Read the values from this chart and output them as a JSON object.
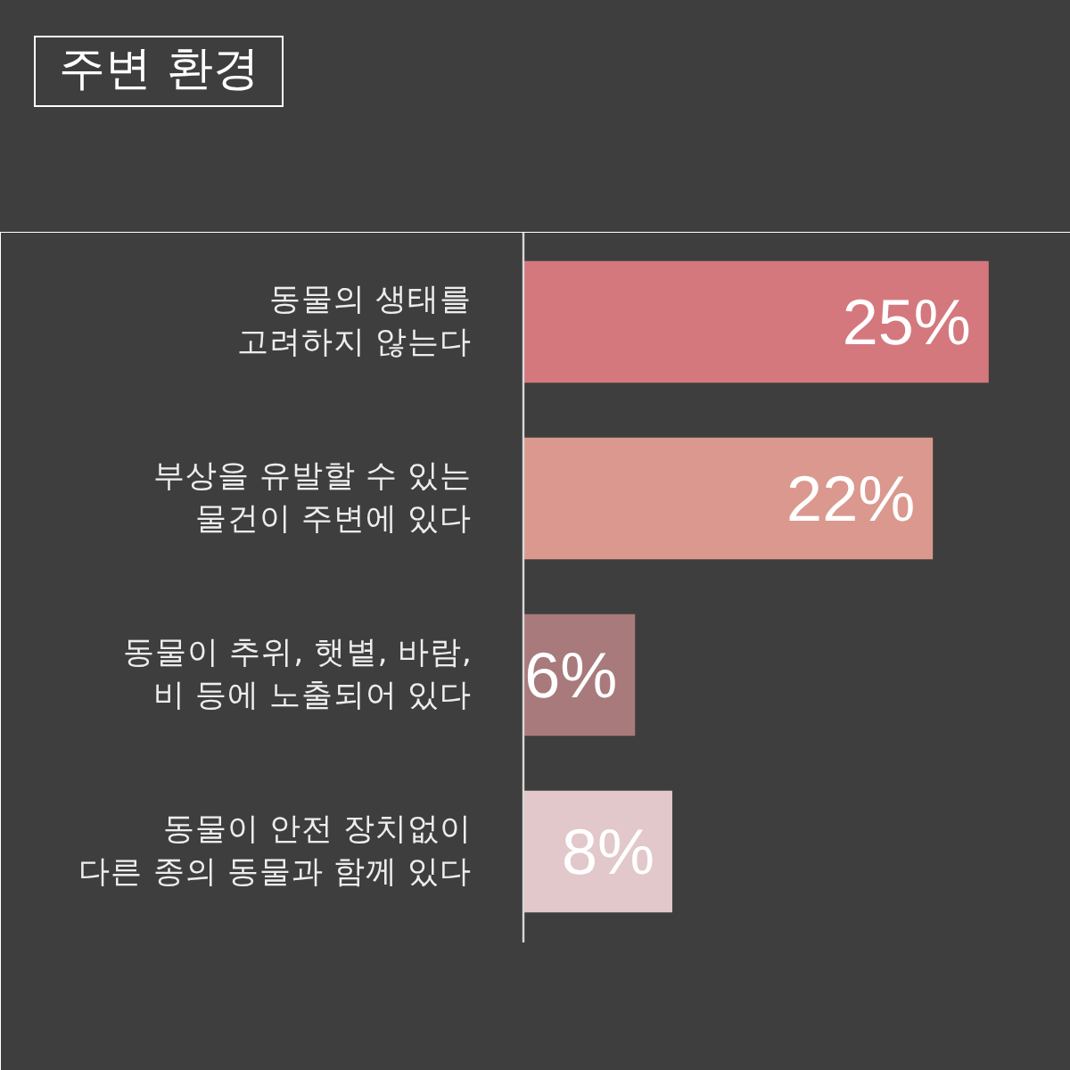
{
  "chart_data": {
    "type": "bar",
    "orientation": "horizontal",
    "title": "주변 환경",
    "categories": [
      "동물의 생태를\n고려하지 않는다",
      "부상을 유발할 수 있는\n물건이 주변에 있다",
      "동물이 추위, 햇볕, 바람,\n비 등에 노출되어 있다",
      "동물이 안전 장치없이\n다른 종의 동물과 함께 있다"
    ],
    "values": [
      25,
      22,
      6,
      8
    ],
    "colors": [
      "#d4787e",
      "#da988f",
      "#a87a7b",
      "#e2c8ca"
    ],
    "value_labels": [
      "25%",
      "22%",
      "6%",
      "8%"
    ]
  }
}
